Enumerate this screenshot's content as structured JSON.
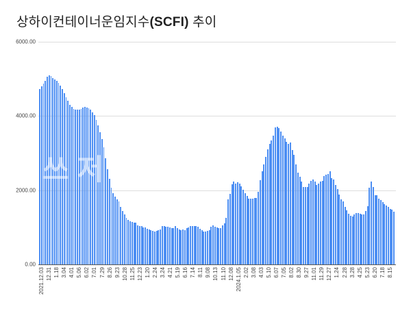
{
  "chart_data": {
    "type": "bar",
    "title": "상하이컨테이너운임지수(SCFI) 추이",
    "title_parts": {
      "pre": "상하이컨테이너운임지수",
      "bold": "(SCFI)",
      "post": " 추이"
    },
    "xlabel": "",
    "ylabel": "",
    "ylim": [
      0,
      6000
    ],
    "yticks": [
      "0.00",
      "2000.00",
      "4000.00",
      "6000.00"
    ],
    "grid": true,
    "legend": "none",
    "color": "#4c8ef3",
    "watermark": "쓰저",
    "tick_labels": [
      "2021.12.03",
      "12.31",
      "1.18",
      "3.04",
      "4.01",
      "5.06",
      "6.02",
      "7.01",
      "7.29",
      "8.26",
      "9.23",
      "10.28",
      "11.25",
      "12.23",
      "1.20",
      "2.24",
      "3.24",
      "4.21",
      "5.19",
      "6.16",
      "7.14",
      "8.11",
      "9.08",
      "10.13",
      "11.10",
      "12.08",
      "2024.1.05",
      "2.02",
      "3.08",
      "4.03",
      "5.10",
      "6.07",
      "7.05",
      "8.02",
      "8.30",
      "9.27",
      "11.01",
      "11.29",
      "12.27",
      "1.24",
      "2.28",
      "3.28",
      "4.25",
      "5.23",
      "6.20",
      "7.18",
      "8.15"
    ],
    "values": [
      4720,
      4800,
      4870,
      4950,
      5050,
      5100,
      5080,
      5030,
      4990,
      4950,
      4900,
      4810,
      4730,
      4620,
      4500,
      4410,
      4310,
      4250,
      4200,
      4180,
      4170,
      4170,
      4190,
      4230,
      4240,
      4230,
      4210,
      4180,
      4100,
      4020,
      3900,
      3740,
      3560,
      3380,
      3150,
      2860,
      2560,
      2300,
      2070,
      1920,
      1820,
      1760,
      1700,
      1560,
      1440,
      1340,
      1260,
      1200,
      1160,
      1140,
      1130,
      1120,
      1060,
      1040,
      1030,
      1000,
      990,
      960,
      940,
      920,
      900,
      890,
      900,
      920,
      950,
      1030,
      1040,
      1020,
      1010,
      990,
      970,
      980,
      1030,
      970,
      940,
      920,
      950,
      930,
      980,
      1000,
      1030,
      1040,
      1030,
      1030,
      1020,
      960,
      920,
      890,
      880,
      900,
      930,
      1010,
      1050,
      1010,
      1000,
      980,
      980,
      1050,
      1100,
      1250,
      1750,
      1900,
      2160,
      2230,
      2180,
      2210,
      2170,
      2110,
      2010,
      1920,
      1840,
      1780,
      1770,
      1780,
      1790,
      1790,
      1960,
      2280,
      2520,
      2700,
      2890,
      3100,
      3250,
      3350,
      3480,
      3690,
      3710,
      3680,
      3590,
      3480,
      3400,
      3300,
      3250,
      3280,
      3080,
      2950,
      2690,
      2480,
      2370,
      2230,
      2090,
      2080,
      2080,
      2170,
      2260,
      2290,
      2240,
      2150,
      2180,
      2230,
      2260,
      2390,
      2410,
      2440,
      2510,
      2330,
      2290,
      2150,
      2040,
      1880,
      1760,
      1690,
      1560,
      1450,
      1370,
      1320,
      1290,
      1350,
      1380,
      1380,
      1360,
      1340,
      1350,
      1440,
      1570,
      2070,
      2240,
      2090,
      1870,
      1860,
      1780,
      1740,
      1680,
      1620,
      1590,
      1550,
      1500,
      1480,
      1430
    ]
  }
}
